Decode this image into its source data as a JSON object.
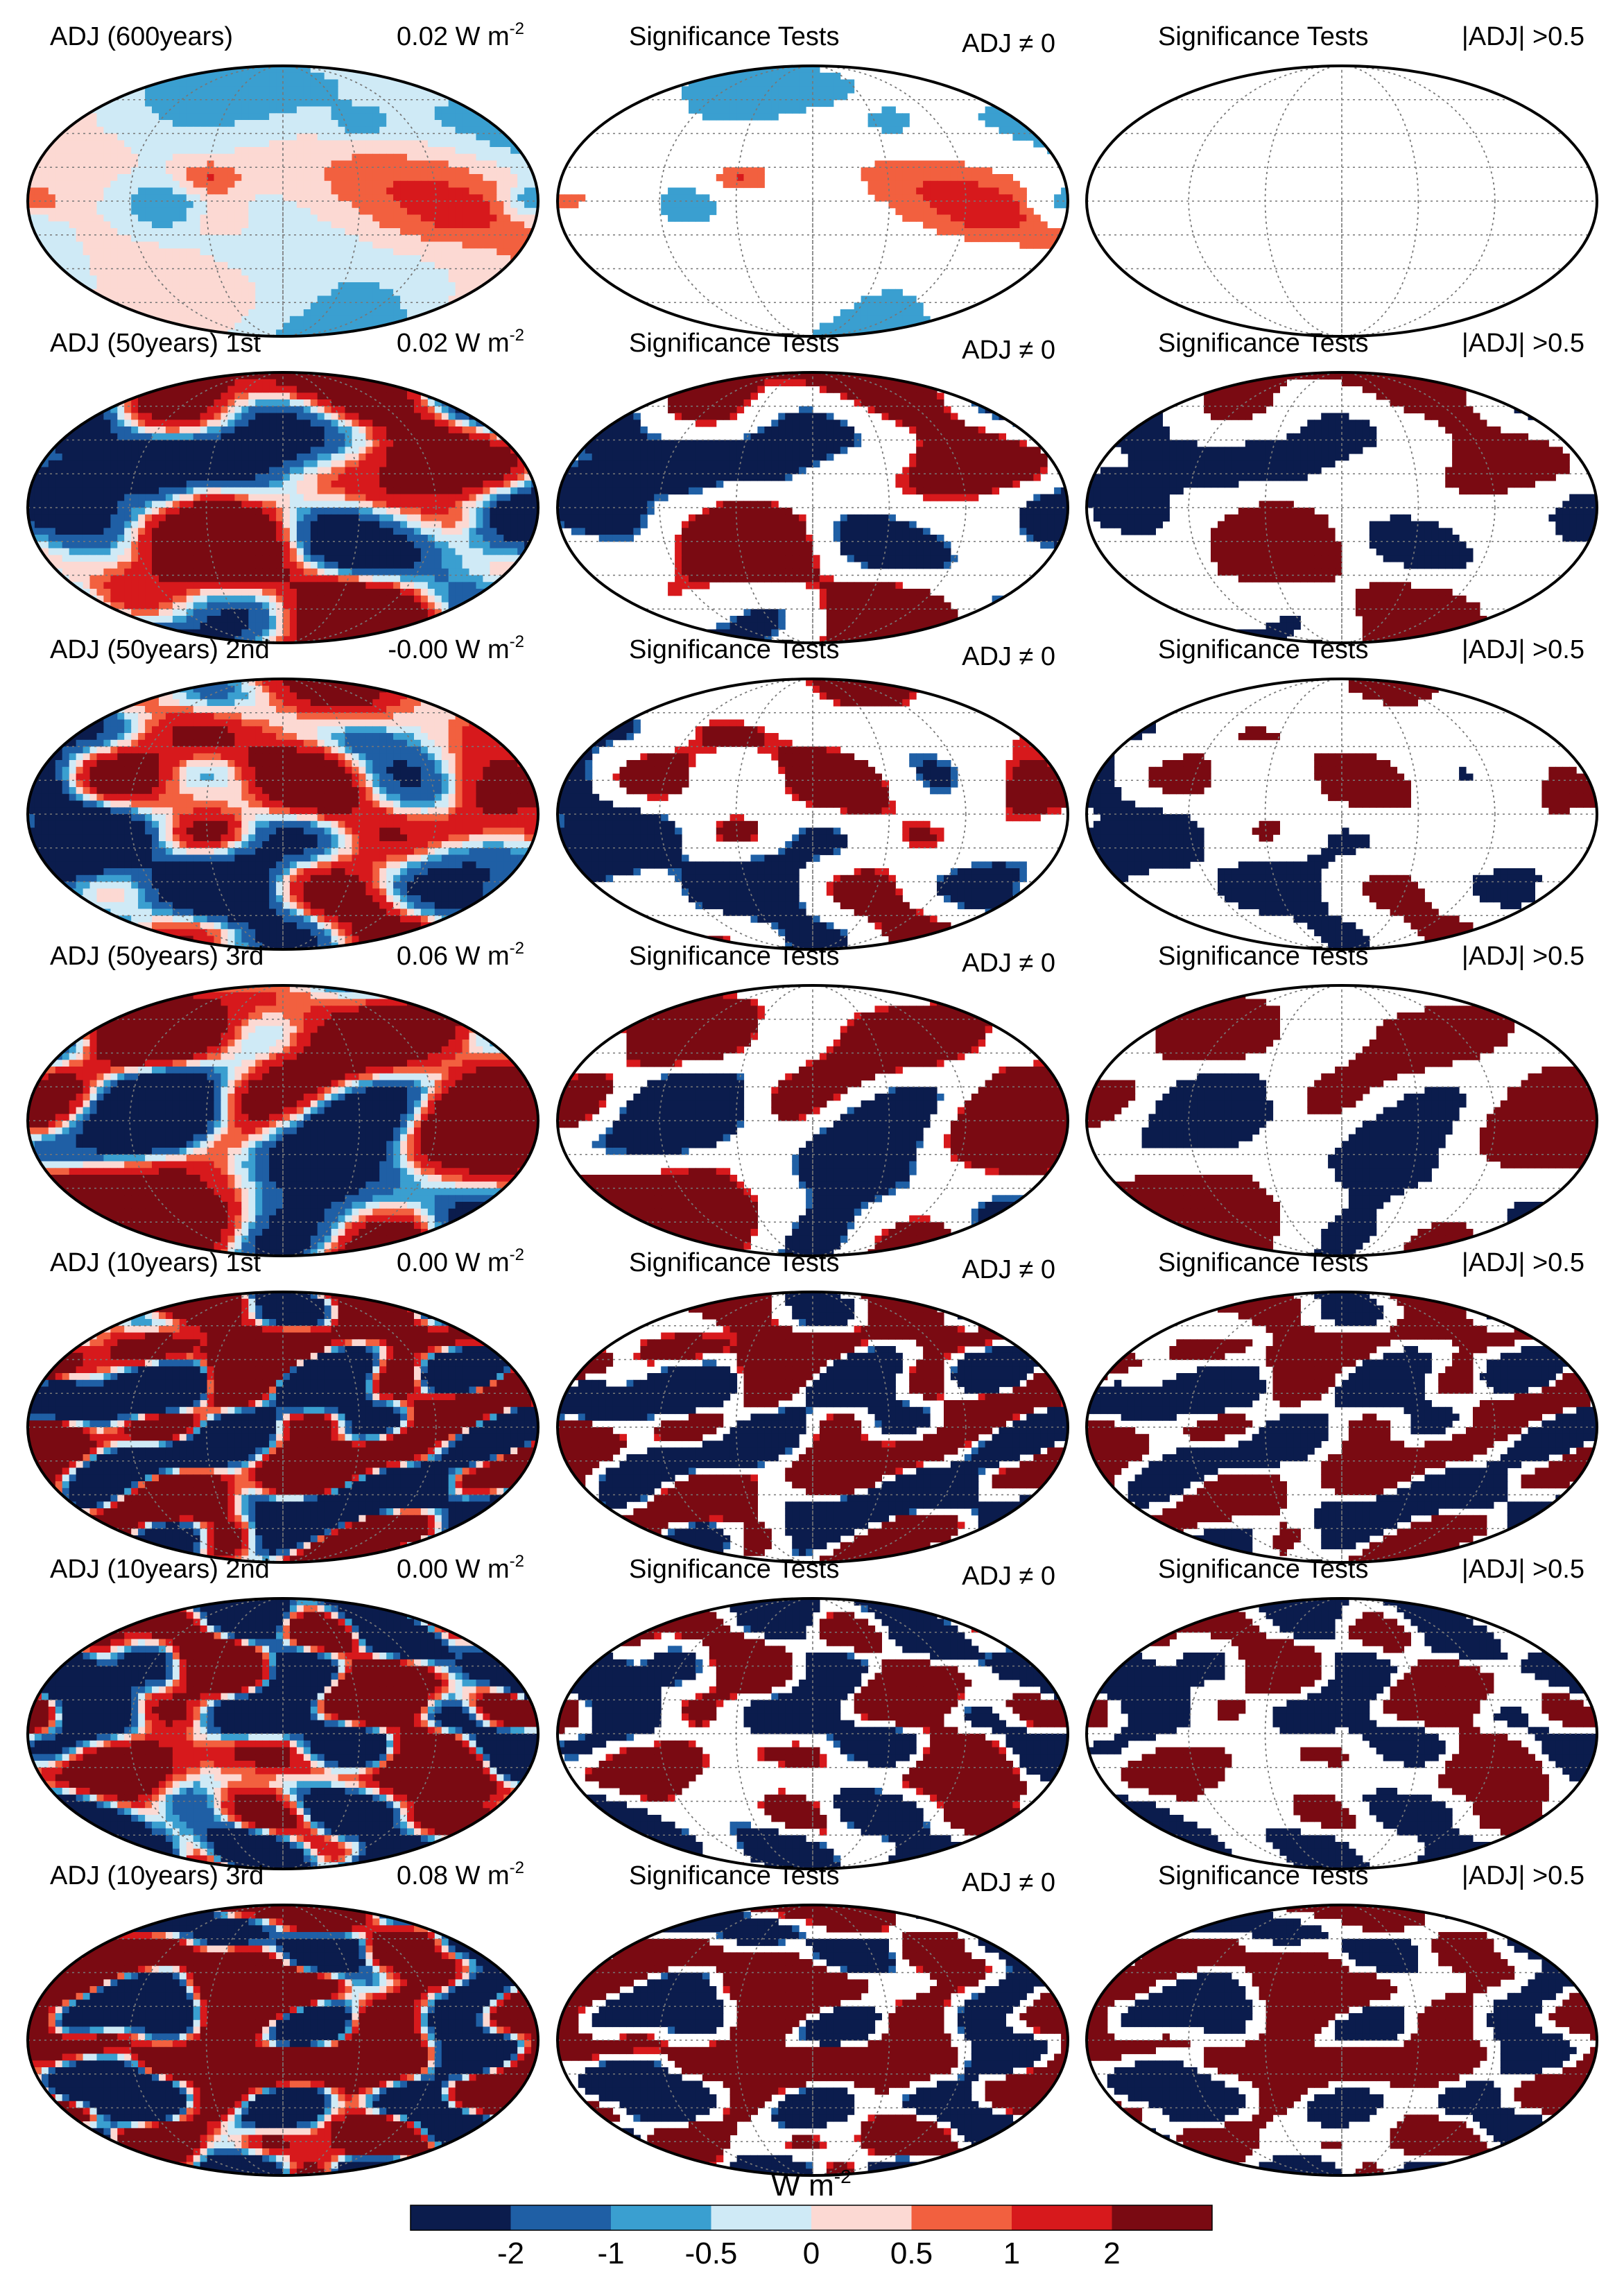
{
  "figure": {
    "rows": [
      {
        "left_title": "ADJ (600years)",
        "global_mean_value": "0.02",
        "global_mean_unit": "W m",
        "global_mean_exp": "-2",
        "mid_title": "Significance Tests",
        "mid_test": "ADJ ≠ 0",
        "right_title": "Significance Tests",
        "right_test": "|ADJ| >0.5",
        "noise": 0.8,
        "mid_keep": 0.55,
        "right_keep": 0.2
      },
      {
        "left_title": "ADJ (50years) 1st",
        "global_mean_value": "0.02",
        "global_mean_unit": "W m",
        "global_mean_exp": "-2",
        "mid_title": "Significance Tests",
        "mid_test": "ADJ ≠ 0",
        "right_title": "Significance Tests",
        "right_test": "|ADJ| >0.5",
        "noise": 1.5,
        "mid_keep": 0.12,
        "right_keep": 0.06
      },
      {
        "left_title": "ADJ (50years) 2nd",
        "global_mean_value": "-0.00",
        "global_mean_unit": "W m",
        "global_mean_exp": "-2",
        "mid_title": "Significance Tests",
        "mid_test": "ADJ ≠ 0",
        "right_title": "Significance Tests",
        "right_test": "|ADJ| >0.5",
        "noise": 1.5,
        "mid_keep": 0.1,
        "right_keep": 0.04
      },
      {
        "left_title": "ADJ (50years) 3rd",
        "global_mean_value": "0.06",
        "global_mean_unit": "W m",
        "global_mean_exp": "-2",
        "mid_title": "Significance Tests",
        "mid_test": "ADJ ≠ 0",
        "right_title": "Significance Tests",
        "right_test": "|ADJ| >0.5",
        "noise": 1.4,
        "mid_keep": 0.1,
        "right_keep": 0.04
      },
      {
        "left_title": "ADJ (10years) 1st",
        "global_mean_value": "0.00",
        "global_mean_unit": "W m",
        "global_mean_exp": "-2",
        "mid_title": "Significance Tests",
        "mid_test": "ADJ ≠ 0",
        "right_title": "Significance Tests",
        "right_test": "|ADJ| >0.5",
        "noise": 2.6,
        "mid_keep": 0.08,
        "right_keep": 0.06
      },
      {
        "left_title": "ADJ (10years) 2nd",
        "global_mean_value": "0.00",
        "global_mean_unit": "W m",
        "global_mean_exp": "-2",
        "mid_title": "Significance Tests",
        "mid_test": "ADJ ≠ 0",
        "right_title": "Significance Tests",
        "right_test": "|ADJ| >0.5",
        "noise": 2.6,
        "mid_keep": 0.08,
        "right_keep": 0.06
      },
      {
        "left_title": "ADJ (10years) 3rd",
        "global_mean_value": "0.08",
        "global_mean_unit": "W m",
        "global_mean_exp": "-2",
        "mid_title": "Significance Tests",
        "mid_test": "ADJ ≠ 0",
        "right_title": "Significance Tests",
        "right_test": "|ADJ| >0.5",
        "noise": 2.6,
        "mid_keep": 0.08,
        "right_keep": 0.06
      }
    ],
    "colorbar": {
      "title_unit": "W m",
      "title_exp": "-2",
      "tick_labels": [
        "-2",
        "-1",
        "-0.5",
        "0",
        "0.5",
        "1",
        "2"
      ],
      "boundaries": [
        -2,
        -1,
        -0.5,
        0,
        0.5,
        1,
        2
      ],
      "colors": [
        "#0b1c4d",
        "#1f5fa5",
        "#3a9fd0",
        "#cfeaf6",
        "#fcd9d3",
        "#f2603f",
        "#d7191c",
        "#7a0a12"
      ]
    }
  }
}
